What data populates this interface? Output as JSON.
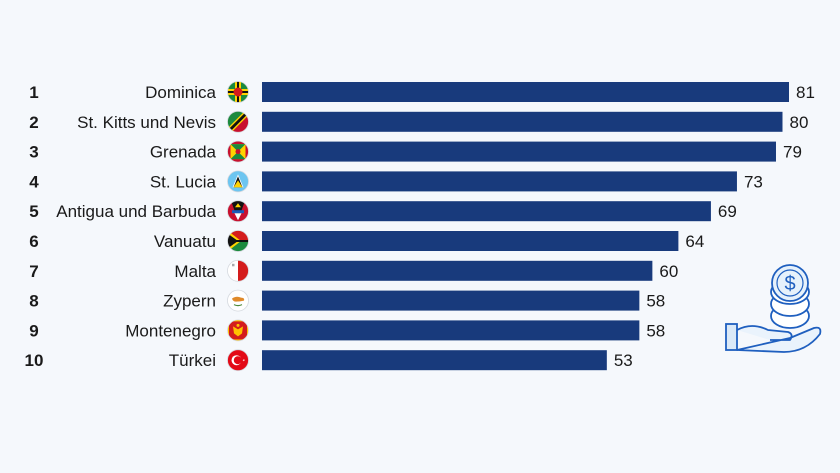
{
  "colors": {
    "bar": "#183a7c",
    "background": "#f5f8fc",
    "illustration": "#1f5fbf"
  },
  "chart_data": {
    "type": "bar",
    "orientation": "horizontal",
    "title": "",
    "xlabel": "",
    "ylabel": "",
    "grid": false,
    "legend": "none",
    "ranks": [
      "1",
      "2",
      "3",
      "4",
      "5",
      "6",
      "7",
      "8",
      "9",
      "10"
    ],
    "categories": [
      "Dominica",
      "St. Kitts und Nevis",
      "Grenada",
      "St. Lucia",
      "Antigua und Barbuda",
      "Vanuatu",
      "Malta",
      "Zypern",
      "Montenegro",
      "Türkei"
    ],
    "values": [
      81,
      80,
      79,
      73,
      69,
      64,
      60,
      58,
      58,
      53
    ],
    "flag_icons": [
      "flag-dominica-icon",
      "flag-st-kitts-nevis-icon",
      "flag-grenada-icon",
      "flag-st-lucia-icon",
      "flag-antigua-barbuda-icon",
      "flag-vanuatu-icon",
      "flag-malta-icon",
      "flag-zypern-icon",
      "flag-montenegro-icon",
      "flag-tuerkei-icon"
    ],
    "xlim": [
      0,
      81
    ]
  },
  "illustration": {
    "icon": "hand-with-dollar-coins-icon",
    "symbol": "$"
  }
}
